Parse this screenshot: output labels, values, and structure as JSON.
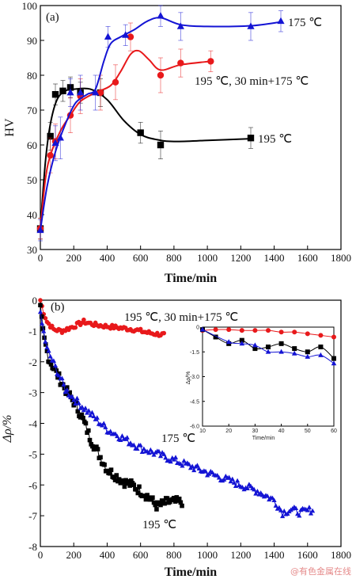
{
  "chart_data": [
    {
      "id": "a",
      "type": "line",
      "panel_label": "(a)",
      "xlabel": "Time/min",
      "ylabel": "HV",
      "xlim": [
        0,
        1800
      ],
      "ylim": [
        30,
        100
      ],
      "xticks": [
        0,
        200,
        400,
        600,
        800,
        1000,
        1200,
        1400,
        1600,
        1800
      ],
      "yticks": [
        30,
        40,
        50,
        60,
        70,
        80,
        90,
        100
      ],
      "series": [
        {
          "name": "195 ℃",
          "color": "#000000",
          "marker": "square",
          "points": [
            [
              0,
              36
            ],
            [
              60,
              62.5
            ],
            [
              90,
              74.5
            ],
            [
              135,
              75.5
            ],
            [
              180,
              76.5
            ],
            [
              240,
              75
            ],
            [
              360,
              75
            ],
            [
              600,
              63.5
            ],
            [
              720,
              60
            ],
            [
              1260,
              62
            ]
          ],
          "errors": [
            3,
            4,
            3,
            3,
            3,
            3,
            4,
            3,
            4,
            3
          ],
          "curve": [
            [
              0,
              36
            ],
            [
              30,
              55
            ],
            [
              60,
              66
            ],
            [
              100,
              73
            ],
            [
              150,
              75.5
            ],
            [
              200,
              76
            ],
            [
              300,
              76
            ],
            [
              400,
              73
            ],
            [
              500,
              67
            ],
            [
              600,
              63
            ],
            [
              700,
              61.5
            ],
            [
              800,
              61
            ],
            [
              1000,
              61.3
            ],
            [
              1260,
              61.8
            ]
          ]
        },
        {
          "name": "195 ℃, 30 min+175 ℃",
          "color": "#e8191b",
          "marker": "circle",
          "points": [
            [
              0,
              36
            ],
            [
              60,
              57
            ],
            [
              90,
              61
            ],
            [
              180,
              68.5
            ],
            [
              240,
              74
            ],
            [
              360,
              75
            ],
            [
              450,
              78
            ],
            [
              540,
              91
            ],
            [
              720,
              80
            ],
            [
              840,
              83.5
            ],
            [
              1020,
              84
            ]
          ],
          "errors": [
            3,
            5,
            5,
            5,
            5,
            5,
            5,
            4,
            5,
            4,
            3
          ],
          "curve": [
            [
              0,
              36
            ],
            [
              30,
              50
            ],
            [
              60,
              57
            ],
            [
              120,
              64
            ],
            [
              180,
              68.5
            ],
            [
              240,
              72.5
            ],
            [
              330,
              75
            ],
            [
              420,
              77
            ],
            [
              480,
              81
            ],
            [
              540,
              86
            ],
            [
              590,
              87
            ],
            [
              650,
              84.5
            ],
            [
              720,
              81.5
            ],
            [
              840,
              83
            ],
            [
              1020,
              84
            ]
          ]
        },
        {
          "name": "175 ℃",
          "color": "#1414d4",
          "marker": "triangle",
          "points": [
            [
              0,
              35.5
            ],
            [
              90,
              60.5
            ],
            [
              120,
              62
            ],
            [
              180,
              75
            ],
            [
              240,
              75
            ],
            [
              330,
              75
            ],
            [
              405,
              91
            ],
            [
              510,
              91.5
            ],
            [
              720,
              97
            ],
            [
              840,
              94
            ],
            [
              1260,
              94
            ],
            [
              1440,
              95.5
            ]
          ],
          "errors": [
            3,
            5,
            6,
            4,
            5,
            5,
            3,
            3,
            3,
            4,
            4,
            3
          ],
          "curve": [
            [
              0,
              35.5
            ],
            [
              40,
              48
            ],
            [
              90,
              58
            ],
            [
              150,
              66
            ],
            [
              210,
              72
            ],
            [
              280,
              74.5
            ],
            [
              330,
              76
            ],
            [
              380,
              84
            ],
            [
              420,
              89
            ],
            [
              480,
              91
            ],
            [
              560,
              93
            ],
            [
              640,
              95.5
            ],
            [
              720,
              96.5
            ],
            [
              840,
              94.5
            ],
            [
              1000,
              94
            ],
            [
              1260,
              94.2
            ],
            [
              1440,
              95.3
            ]
          ]
        }
      ],
      "annotations": [
        "175 ℃",
        "195 ℃, 30 min+175 ℃",
        "195 ℃"
      ]
    },
    {
      "id": "b",
      "type": "scatter",
      "panel_label": "(b)",
      "xlabel": "Time/min",
      "ylabel": "Δρ/%",
      "xlim": [
        0,
        1800
      ],
      "ylim": [
        -8,
        0
      ],
      "xticks": [
        0,
        200,
        400,
        600,
        800,
        1000,
        1200,
        1400,
        1600,
        1800
      ],
      "yticks": [
        -8,
        -7,
        -6,
        -5,
        -4,
        -3,
        -2,
        -1,
        0
      ],
      "series": [
        {
          "name": "195 ℃, 30 min+175 ℃",
          "color": "#e8191b",
          "marker": "circle",
          "anchors": [
            [
              0,
              0
            ],
            [
              20,
              -0.4
            ],
            [
              40,
              -0.7
            ],
            [
              80,
              -0.95
            ],
            [
              130,
              -1.0
            ],
            [
              200,
              -0.85
            ],
            [
              260,
              -0.7
            ],
            [
              330,
              -0.8
            ],
            [
              400,
              -0.85
            ],
            [
              480,
              -0.9
            ],
            [
              560,
              -0.95
            ],
            [
              640,
              -1.05
            ],
            [
              700,
              -1.1
            ],
            [
              740,
              -1.12
            ]
          ],
          "step": 10,
          "noise": 0.07
        },
        {
          "name": "195 ℃",
          "color": "#000000",
          "marker": "square",
          "anchors": [
            [
              0,
              -0.3
            ],
            [
              20,
              -1.2
            ],
            [
              50,
              -1.9
            ],
            [
              100,
              -2.4
            ],
            [
              150,
              -2.9
            ],
            [
              200,
              -3.3
            ],
            [
              250,
              -3.8
            ],
            [
              300,
              -4.5
            ],
            [
              350,
              -5.0
            ],
            [
              400,
              -5.5
            ],
            [
              450,
              -5.7
            ],
            [
              500,
              -5.9
            ],
            [
              550,
              -6.0
            ],
            [
              600,
              -6.2
            ],
            [
              650,
              -6.4
            ],
            [
              700,
              -6.7
            ],
            [
              760,
              -6.55
            ],
            [
              850,
              -6.55
            ]
          ],
          "step": 8,
          "noise": 0.15
        },
        {
          "name": "175 ℃",
          "color": "#1414d4",
          "marker": "triangle",
          "anchors": [
            [
              0,
              -0.5
            ],
            [
              40,
              -1.6
            ],
            [
              100,
              -2.3
            ],
            [
              150,
              -2.9
            ],
            [
              200,
              -3.2
            ],
            [
              300,
              -3.7
            ],
            [
              400,
              -4.2
            ],
            [
              500,
              -4.5
            ],
            [
              600,
              -4.8
            ],
            [
              700,
              -5.0
            ],
            [
              800,
              -5.2
            ],
            [
              900,
              -5.4
            ],
            [
              1000,
              -5.6
            ],
            [
              1100,
              -5.8
            ],
            [
              1200,
              -6.0
            ],
            [
              1300,
              -6.2
            ],
            [
              1400,
              -6.5
            ],
            [
              1450,
              -6.9
            ],
            [
              1500,
              -6.8
            ],
            [
              1560,
              -6.9
            ],
            [
              1630,
              -6.8
            ]
          ],
          "step": 10,
          "noise": 0.12
        }
      ],
      "annotations": [
        "195 ℃, 30 min+175 ℃",
        "175 ℃",
        "195 ℃"
      ],
      "inset": {
        "xlabel": "Time/min",
        "ylabel": "Δρ/%",
        "xlim": [
          10,
          60
        ],
        "ylim": [
          -6,
          0
        ],
        "xticks": [
          10,
          20,
          30,
          40,
          50,
          60
        ],
        "yticks": [
          0,
          -1.5,
          -3.0,
          -4.5,
          -6.0
        ],
        "ytick_labels": [
          "0",
          "-1.5",
          "-3.0",
          "-4.5",
          "-6.0"
        ],
        "series": [
          {
            "name": "195 ℃, 30 min+175 ℃",
            "color": "#e8191b",
            "marker": "circle",
            "points": [
              [
                10,
                -0.2
              ],
              [
                15,
                -0.15
              ],
              [
                20,
                -0.15
              ],
              [
                25,
                -0.2
              ],
              [
                30,
                -0.2
              ],
              [
                35,
                -0.2
              ],
              [
                40,
                -0.3
              ],
              [
                45,
                -0.3
              ],
              [
                50,
                -0.4
              ],
              [
                55,
                -0.5
              ],
              [
                60,
                -0.6
              ]
            ]
          },
          {
            "name": "195 ℃",
            "color": "#000000",
            "marker": "square",
            "points": [
              [
                10,
                -0.15
              ],
              [
                15,
                -0.6
              ],
              [
                20,
                -1.0
              ],
              [
                25,
                -0.8
              ],
              [
                30,
                -1.3
              ],
              [
                35,
                -1.2
              ],
              [
                40,
                -1.0
              ],
              [
                45,
                -1.3
              ],
              [
                50,
                -1.5
              ],
              [
                55,
                -1.2
              ],
              [
                60,
                -1.9
              ]
            ]
          },
          {
            "name": "175 ℃",
            "color": "#1414d4",
            "marker": "triangle",
            "points": [
              [
                10,
                -0.15
              ],
              [
                20,
                -0.9
              ],
              [
                25,
                -1.0
              ],
              [
                30,
                -1.1
              ],
              [
                35,
                -1.5
              ],
              [
                40,
                -1.5
              ],
              [
                45,
                -1.6
              ],
              [
                50,
                -1.8
              ],
              [
                55,
                -1.7
              ],
              [
                60,
                -2.2
              ]
            ]
          }
        ]
      }
    }
  ],
  "watermark": "@有色金属在线"
}
